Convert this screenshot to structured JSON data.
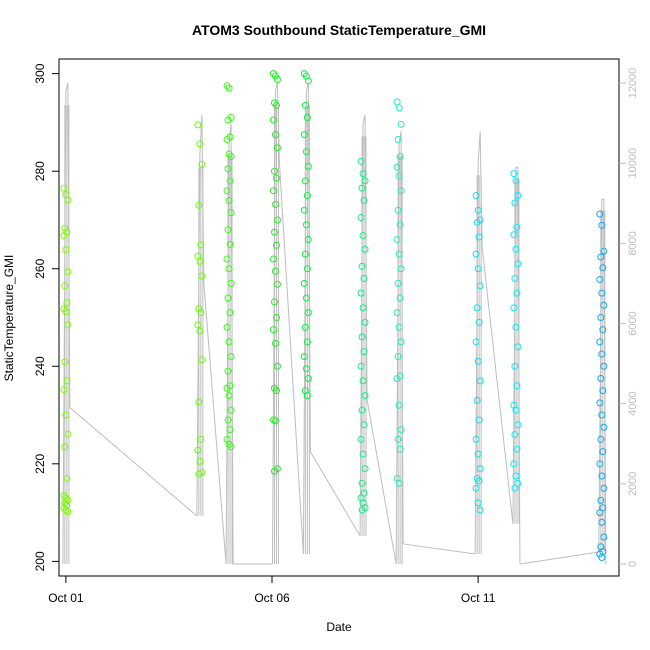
{
  "chart_data": {
    "type": "scatter",
    "title": "ATOM3 Southbound StaticTemperature_GMI",
    "xlabel": "Date",
    "ylabel": "StaticTemperature_GMI",
    "x_axis": {
      "type": "date",
      "range": [
        "2016-09-30T20:00",
        "2016-10-14T10:00"
      ],
      "ticks": [
        {
          "value": "2016-10-01",
          "label": "Oct 01"
        },
        {
          "value": "2016-10-06",
          "label": "Oct 06"
        },
        {
          "value": "2016-10-11",
          "label": "Oct 11"
        }
      ]
    },
    "y_axis_left": {
      "range": [
        197,
        303
      ],
      "ticks": [
        200,
        220,
        240,
        260,
        280,
        300
      ]
    },
    "y_axis_right": {
      "range": [
        -300,
        12600
      ],
      "ticks": [
        0,
        2000,
        4000,
        6000,
        8000,
        10000,
        12000
      ],
      "color": "#bdbdbd"
    },
    "grid": false,
    "legend": "none",
    "colors": {
      "altitude_line": "#bdbdbd",
      "axis": "#000000"
    },
    "flights": [
      {
        "time": "2016-10-01T00:00",
        "color": "#7cfc00",
        "temperature": [
          276.5,
          275.2,
          274.1,
          268.3,
          267.5,
          266.8,
          263.9,
          259.4,
          256.5,
          253.0,
          251.8,
          251.2,
          248.5,
          240.9,
          237.0,
          235.2,
          230.0,
          226.1,
          223.5,
          217.0,
          213.5,
          213.0,
          212.5,
          212.0,
          211.5,
          211.0,
          210.5,
          210.2
        ],
        "altitude": [
          0,
          11800,
          12000,
          3900
        ]
      },
      {
        "time": "2016-10-04T06:00",
        "color": "#66ff00",
        "temperature": [
          289.5,
          285.6,
          281.4,
          273.0,
          264.9,
          262.6,
          261.5,
          258.5,
          251.8,
          251.0,
          248.5,
          247.2,
          241.3,
          232.7,
          225.0,
          222.8,
          220.5,
          218.2,
          217.9
        ],
        "altitude": [
          1200,
          10200,
          11200,
          7000
        ]
      },
      {
        "time": "2016-10-04T23:00",
        "color": "#33ff11",
        "temperature": [
          297.5,
          297.0,
          291.0,
          290.5,
          287.0,
          286.5,
          283.5,
          283.0,
          280.5,
          278.0,
          276.0,
          274.0,
          271.5,
          268.0,
          265.0,
          262.0,
          260.0,
          257.0,
          254.0,
          251.0,
          248.0,
          245.0,
          242.0,
          239.0,
          236.0,
          235.5,
          234.0,
          231.0,
          229.0,
          227.0,
          225.0,
          224.0,
          223.5
        ],
        "altitude": [
          0,
          10500,
          11000,
          0
        ]
      },
      {
        "time": "2016-10-06T02:00",
        "color": "#22ee22",
        "temperature": [
          300.0,
          299.5,
          298.8,
          294.0,
          293.5,
          290.5,
          287.5,
          284.8,
          280.0,
          278.6,
          276.0,
          273.2,
          270.0,
          267.5,
          264.8,
          262.0,
          259.5,
          256.8,
          253.2,
          250.0,
          247.5,
          244.7,
          240.0,
          235.5,
          235.0,
          229.0,
          228.8,
          219.0,
          218.5
        ],
        "altitude": [
          0,
          11800,
          12000,
          10000
        ]
      },
      {
        "time": "2016-10-06T20:00",
        "color": "#11ee44",
        "temperature": [
          300.0,
          299.5,
          298.5,
          293.5,
          291.0,
          287.5,
          284.0,
          281.0,
          278.0,
          275.0,
          272.0,
          269.0,
          266.0,
          263.0,
          260.0,
          257.0,
          254.0,
          251.0,
          248.0,
          245.0,
          242.0,
          239.5,
          237.5,
          235.0,
          234.0
        ],
        "altitude": [
          250,
          11800,
          12000,
          2800
        ]
      },
      {
        "time": "2016-10-08T05:00",
        "color": "#11ee88",
        "temperature": [
          282.0,
          279.5,
          278.0,
          276.5,
          274.0,
          270.5,
          266.8,
          264.0,
          260.5,
          258.0,
          255.0,
          252.0,
          249.0,
          246.0,
          243.0,
          240.0,
          237.0,
          234.0,
          231.0,
          228.0,
          225.0,
          222.0,
          219.0,
          216.0,
          214.0,
          213.0,
          212.0,
          211.0,
          210.5
        ],
        "altitude": [
          700,
          11000,
          11200,
          4100
        ]
      },
      {
        "time": "2016-10-09T02:00",
        "color": "#22eebb",
        "temperature": [
          294.2,
          293.0,
          289.6,
          286.5,
          283.0,
          280.8,
          279.0,
          276.0,
          272.0,
          269.0,
          266.0,
          263.0,
          260.0,
          257.0,
          254.0,
          251.0,
          248.0,
          245.0,
          242.0,
          238.0,
          237.5,
          232.0,
          227.0,
          225.0,
          223.0,
          217.0,
          216.0
        ],
        "altitude": [
          0,
          10500,
          10800,
          500
        ]
      },
      {
        "time": "2016-10-11T00:00",
        "color": "#11ddee",
        "temperature": [
          275.0,
          272.0,
          270.0,
          269.5,
          266.5,
          263.0,
          260.0,
          256.5,
          252.0,
          249.0,
          245.0,
          241.0,
          237.0,
          233.0,
          229.0,
          225.0,
          222.0,
          219.0,
          217.0,
          216.5,
          215.0,
          212.0,
          210.5
        ],
        "altitude": [
          250,
          10000,
          10800,
          7900
        ]
      },
      {
        "time": "2016-10-11T22:00",
        "color": "#00eeff",
        "temperature": [
          279.5,
          278.0,
          275.0,
          273.5,
          268.5,
          267.0,
          264.0,
          261.0,
          258.0,
          255.0,
          252.0,
          248.0,
          244.0,
          240.0,
          236.0,
          232.0,
          231.0,
          228.0,
          226.0,
          223.0,
          220.0,
          217.5,
          216.0,
          215.0
        ],
        "altitude": [
          1000,
          9900,
          9900,
          0
        ]
      },
      {
        "time": "2016-10-14T00:00",
        "color": "#11aaee",
        "temperature": [
          271.2,
          268.9,
          263.6,
          262.4,
          260.2,
          257.8,
          255.0,
          252.5,
          250.0,
          247.5,
          245.0,
          242.5,
          240.0,
          237.5,
          235.0,
          232.5,
          230.0,
          227.5,
          225.0,
          222.5,
          220.0,
          217.5,
          215.0,
          212.5,
          211.0,
          210.0,
          208.0,
          205.0,
          203.0,
          202.0,
          201.5,
          200.8
        ],
        "altitude": [
          300,
          9100,
          9100,
          0
        ]
      }
    ]
  }
}
